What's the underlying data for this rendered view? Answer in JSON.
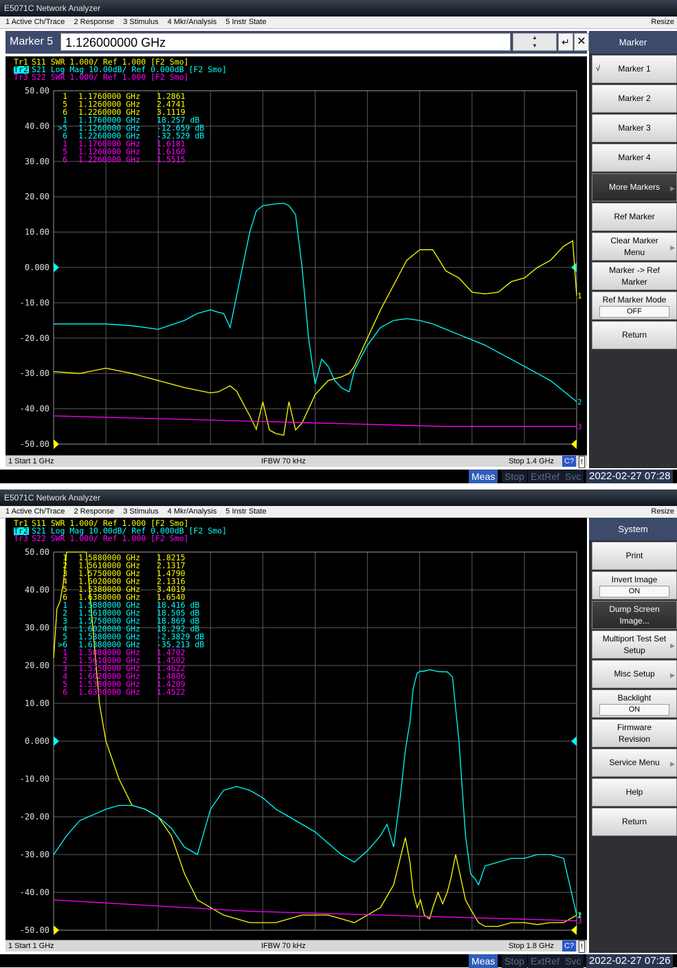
{
  "window1": {
    "title": "E5071C Network Analyzer",
    "menu": [
      "1 Active Ch/Trace",
      "2 Response",
      "3 Stimulus",
      "4 Mkr/Analysis",
      "5 Instr State"
    ],
    "resize": "Resize",
    "entry_label": "Marker 5",
    "entry_value": "1.126000000 GHz",
    "trace_headers": [
      {
        "label": "Tr1",
        "text": "S11  SWR 1.000/ Ref 1.000 [F2 Smo]",
        "color": "#ffff00"
      },
      {
        "label": "Tr2",
        "text": "S21  Log Mag 10.00dB/ Ref 0.000dB [F2 Smo]",
        "color": "#00ffff"
      },
      {
        "label": "Tr3",
        "text": "S22  SWR 1.000/ Ref 1.000 [F2 Smo]",
        "color": "#ff00ff"
      }
    ],
    "y_labels": [
      "50.00",
      "40.00",
      "30.00",
      "20.00",
      "10.00",
      "0.000",
      "-10.00",
      "-20.00",
      "-30.00",
      "-40.00",
      "-50.00"
    ],
    "marker_table": [
      {
        "n": "1",
        "f": "1.1760000 GHz",
        "v": "1.2861",
        "c": "#ffff00"
      },
      {
        "n": "5",
        "f": "1.1260000 GHz",
        "v": "2.4741",
        "c": "#ffff00"
      },
      {
        "n": "6",
        "f": "1.2260000 GHz",
        "v": "3.1119",
        "c": "#ffff00"
      },
      {
        "n": "1",
        "f": "1.1760000 GHz",
        "v": "18.257 dB",
        "c": "#00ffff"
      },
      {
        "n": ">5",
        "f": "1.1260000 GHz",
        "v": "-12.659 dB",
        "c": "#00ffff"
      },
      {
        "n": "6",
        "f": "1.2260000 GHz",
        "v": "-32.529 dB",
        "c": "#00ffff"
      },
      {
        "n": "1",
        "f": "1.1760000 GHz",
        "v": "1.6181",
        "c": "#ff00ff"
      },
      {
        "n": "5",
        "f": "1.1260000 GHz",
        "v": "1.6160",
        "c": "#ff00ff"
      },
      {
        "n": "6",
        "f": "1.2260000 GHz",
        "v": "1.5515",
        "c": "#ff00ff"
      }
    ],
    "start": "1  Start 1 GHz",
    "ifbw": "IFBW 70 kHz",
    "stop": "Stop 1.4 GHz",
    "c2": "C?",
    "excl": "!",
    "status": {
      "meas": "Meas",
      "stop": "Stop",
      "extref": "ExtRef",
      "svc": "Svc",
      "time": "2022-02-27 07:28"
    },
    "softkey_title": "Marker",
    "softkeys": [
      "Marker 1",
      "Marker 2",
      "Marker 3",
      "Marker 4",
      "More Markers",
      "Ref Marker",
      "Clear Marker Menu",
      "Marker -> Ref Marker",
      "Ref Marker Mode",
      "Return"
    ],
    "ref_marker_mode_value": "OFF",
    "check": "√"
  },
  "window2": {
    "title": "E5071C Network Analyzer",
    "menu": [
      "1 Active Ch/Trace",
      "2 Response",
      "3 Stimulus",
      "4 Mkr/Analysis",
      "5 Instr State"
    ],
    "resize": "Resize",
    "trace_headers": [
      {
        "label": "Tr1",
        "text": "S11  SWR 1.000/ Ref 1.000 [F2 Smo]",
        "color": "#ffff00"
      },
      {
        "label": "Tr2",
        "text": "S21  Log Mag 10.00dB/ Ref 0.000dB [F2 Smo]",
        "color": "#00ffff"
      },
      {
        "label": "Tr3",
        "text": "S22  SWR 1.000/ Ref 1.000 [F2 Smo]",
        "color": "#ff00ff"
      }
    ],
    "y_labels": [
      "50.00",
      "40.00",
      "30.00",
      "20.00",
      "10.00",
      "0.000",
      "-10.00",
      "-20.00",
      "-30.00",
      "-40.00",
      "-50.00"
    ],
    "marker_table": [
      {
        "n": "1",
        "f": "1.5880000 GHz",
        "v": "1.8215",
        "c": "#ffff00"
      },
      {
        "n": "2",
        "f": "1.5610000 GHz",
        "v": "2.1317",
        "c": "#ffff00"
      },
      {
        "n": "3",
        "f": "1.5750000 GHz",
        "v": "1.4790",
        "c": "#ffff00"
      },
      {
        "n": "4",
        "f": "1.6020000 GHz",
        "v": "2.1316",
        "c": "#ffff00"
      },
      {
        "n": "5",
        "f": "1.5380000 GHz",
        "v": "3.4019",
        "c": "#ffff00"
      },
      {
        "n": "6",
        "f": "1.6380000 GHz",
        "v": "1.6540",
        "c": "#ffff00"
      },
      {
        "n": "1",
        "f": "1.5880000 GHz",
        "v": "18.416 dB",
        "c": "#00ffff"
      },
      {
        "n": "2",
        "f": "1.5610000 GHz",
        "v": "18.505 dB",
        "c": "#00ffff"
      },
      {
        "n": "3",
        "f": "1.5750000 GHz",
        "v": "18.869 dB",
        "c": "#00ffff"
      },
      {
        "n": "4",
        "f": "1.6020000 GHz",
        "v": "18.292 dB",
        "c": "#00ffff"
      },
      {
        "n": "5",
        "f": "1.5380000 GHz",
        "v": "-2.3829 dB",
        "c": "#00ffff"
      },
      {
        "n": ">6",
        "f": "1.6380000 GHz",
        "v": "-35.213 dB",
        "c": "#00ffff"
      },
      {
        "n": "1",
        "f": "1.5880000 GHz",
        "v": "1.4702",
        "c": "#ff00ff"
      },
      {
        "n": "2",
        "f": "1.5610000 GHz",
        "v": "1.4502",
        "c": "#ff00ff"
      },
      {
        "n": "3",
        "f": "1.5750000 GHz",
        "v": "1.4622",
        "c": "#ff00ff"
      },
      {
        "n": "4",
        "f": "1.6020000 GHz",
        "v": "1.4806",
        "c": "#ff00ff"
      },
      {
        "n": "5",
        "f": "1.5380000 GHz",
        "v": "1.4209",
        "c": "#ff00ff"
      },
      {
        "n": "6",
        "f": "1.6380000 GHz",
        "v": "1.4522",
        "c": "#ff00ff"
      }
    ],
    "start": "1  Start 1 GHz",
    "ifbw": "IFBW 70 kHz",
    "stop": "Stop 1.8 GHz",
    "c2": "C?",
    "excl": "!",
    "status": {
      "meas": "Meas",
      "stop": "Stop",
      "extref": "ExtRef",
      "svc": "Svc",
      "time": "2022-02-27 07:26"
    },
    "softkey_title": "System",
    "softkeys": [
      "Print",
      "Invert Image",
      "Dump Screen Image...",
      "Multiport Test Set Setup",
      "Misc Setup",
      "Backlight",
      "Firmware Revision",
      "Service Menu",
      "Help",
      "Return"
    ],
    "invert_image_value": "ON",
    "backlight_value": "ON"
  },
  "chart_data": [
    {
      "type": "line",
      "xlabel": "",
      "ylabel": "",
      "xlim": [
        1.0,
        1.4
      ],
      "ylim": [
        -50,
        50
      ],
      "series": [
        {
          "name": "Tr1 S11",
          "color": "#ffff00",
          "x": [
            1.0,
            1.02,
            1.04,
            1.06,
            1.08,
            1.1,
            1.12,
            1.126,
            1.135,
            1.14,
            1.15,
            1.155,
            1.16,
            1.165,
            1.17,
            1.176,
            1.18,
            1.185,
            1.19,
            1.2,
            1.21,
            1.22,
            1.226,
            1.23,
            1.24,
            1.25,
            1.26,
            1.27,
            1.28,
            1.29,
            1.3,
            1.31,
            1.32,
            1.33,
            1.34,
            1.35,
            1.36,
            1.37,
            1.38,
            1.39,
            1.397,
            1.4
          ],
          "y": [
            -29.5,
            -30,
            -28.5,
            -30,
            -32,
            -34,
            -35.5,
            -35.2,
            -33.5,
            -35,
            -42,
            -45.8,
            -38,
            -46,
            -47,
            -47.5,
            -38,
            -46,
            -44,
            -36,
            -32,
            -31,
            -30,
            -28,
            -20,
            -12,
            -5,
            2,
            5,
            5,
            -1,
            -3,
            -7,
            -7.5,
            -7,
            -4,
            -3,
            0,
            2,
            6,
            7.5,
            -8
          ]
        },
        {
          "name": "Tr2 S21",
          "color": "#00ffff",
          "x": [
            1.0,
            1.02,
            1.04,
            1.06,
            1.08,
            1.1,
            1.11,
            1.12,
            1.126,
            1.13,
            1.135,
            1.14,
            1.15,
            1.155,
            1.16,
            1.17,
            1.176,
            1.18,
            1.185,
            1.19,
            1.195,
            1.2,
            1.205,
            1.21,
            1.215,
            1.22,
            1.226,
            1.23,
            1.24,
            1.25,
            1.26,
            1.27,
            1.28,
            1.29,
            1.3,
            1.31,
            1.32,
            1.33,
            1.34,
            1.35,
            1.36,
            1.37,
            1.38,
            1.39,
            1.4
          ],
          "y": [
            -16,
            -16,
            -16,
            -16.5,
            -17.5,
            -15,
            -13,
            -12,
            -12.7,
            -13,
            -17,
            -8,
            10,
            16,
            17.5,
            18,
            18.2,
            17.5,
            15,
            0,
            -20,
            -33,
            -26,
            -28,
            -32,
            -34,
            -35.2,
            -29,
            -22,
            -17,
            -15,
            -14.5,
            -15,
            -16,
            -17.5,
            -19,
            -20.5,
            -22,
            -24,
            -26,
            -28,
            -30,
            -32,
            -35,
            -38
          ]
        },
        {
          "name": "Tr3 S22",
          "color": "#ff00ff",
          "x": [
            1.0,
            1.05,
            1.1,
            1.15,
            1.2,
            1.25,
            1.3,
            1.35,
            1.4
          ],
          "y": [
            -42,
            -42.5,
            -43,
            -43.5,
            -44,
            -44.5,
            -45,
            -45,
            -45
          ]
        }
      ]
    },
    {
      "type": "line",
      "xlabel": "",
      "ylabel": "",
      "xlim": [
        1.0,
        1.8
      ],
      "ylim": [
        -50,
        50
      ],
      "series": [
        {
          "name": "Tr1 S11",
          "color": "#ffff00",
          "x": [
            1.0,
            1.005,
            1.01,
            1.015,
            1.02,
            1.03,
            1.04,
            1.05,
            1.06,
            1.07,
            1.08,
            1.1,
            1.12,
            1.14,
            1.16,
            1.18,
            1.2,
            1.22,
            1.26,
            1.3,
            1.34,
            1.38,
            1.42,
            1.46,
            1.5,
            1.52,
            1.538,
            1.545,
            1.55,
            1.556,
            1.561,
            1.567,
            1.575,
            1.58,
            1.588,
            1.595,
            1.602,
            1.608,
            1.615,
            1.62,
            1.63,
            1.638,
            1.65,
            1.66,
            1.68,
            1.7,
            1.72,
            1.74,
            1.76,
            1.78,
            1.8
          ],
          "y": [
            22,
            35,
            37,
            42,
            50,
            50,
            50,
            50,
            30,
            10,
            0,
            -10,
            -17,
            -18,
            -20,
            -25,
            -35,
            -42,
            -46,
            -48,
            -48,
            -46,
            -46,
            -48,
            -44,
            -38,
            -25.5,
            -32,
            -40,
            -44,
            -42,
            -46,
            -47,
            -44,
            -40,
            -43,
            -40,
            -36,
            -30,
            -34,
            -42,
            -44.5,
            -48,
            -49,
            -49,
            -48,
            -48,
            -48.5,
            -48,
            -48,
            -46
          ]
        },
        {
          "name": "Tr2 S21",
          "color": "#00ffff",
          "x": [
            1.0,
            1.02,
            1.04,
            1.06,
            1.08,
            1.1,
            1.12,
            1.14,
            1.16,
            1.18,
            1.2,
            1.22,
            1.24,
            1.26,
            1.28,
            1.3,
            1.32,
            1.34,
            1.36,
            1.38,
            1.4,
            1.42,
            1.44,
            1.46,
            1.48,
            1.5,
            1.51,
            1.52,
            1.53,
            1.538,
            1.545,
            1.55,
            1.556,
            1.561,
            1.567,
            1.575,
            1.588,
            1.602,
            1.61,
            1.62,
            1.63,
            1.638,
            1.645,
            1.65,
            1.66,
            1.68,
            1.7,
            1.72,
            1.74,
            1.76,
            1.78,
            1.8
          ],
          "y": [
            -30,
            -25,
            -21,
            -19.5,
            -18,
            -17,
            -17,
            -18,
            -20,
            -23,
            -28,
            -30,
            -18,
            -13,
            -12,
            -13,
            -15,
            -18,
            -20,
            -22,
            -24,
            -27,
            -30,
            -32,
            -29,
            -25,
            -22,
            -28,
            -15,
            -2.4,
            5,
            14,
            18,
            18.5,
            18.5,
            18.9,
            18.4,
            18.3,
            17,
            0,
            -25,
            -35.2,
            -36.5,
            -38,
            -33,
            -32,
            -31,
            -31,
            -30,
            -30,
            -31,
            -46
          ]
        },
        {
          "name": "Tr3 S22",
          "color": "#ff00ff",
          "x": [
            1.0,
            1.1,
            1.2,
            1.3,
            1.4,
            1.5,
            1.6,
            1.7,
            1.8
          ],
          "y": [
            -42,
            -43,
            -44,
            -45,
            -45.5,
            -46,
            -46.5,
            -47,
            -47.5
          ]
        }
      ]
    }
  ]
}
